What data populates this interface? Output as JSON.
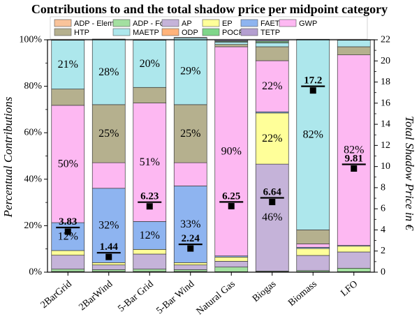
{
  "chart_data": {
    "type": "bar",
    "stacked": true,
    "title": "Contributions to and the total shadow price per midpoint category",
    "ylabel": "Percentual Contributions",
    "y2label": "Total Shadow Price in €",
    "ylim": [
      0,
      100
    ],
    "y2lim": [
      0,
      22
    ],
    "yticks": [
      "0%",
      "20%",
      "40%",
      "60%",
      "80%",
      "100%"
    ],
    "y2ticks": [
      "0",
      "2",
      "4",
      "6",
      "8",
      "10",
      "12",
      "14",
      "16",
      "18",
      "20",
      "22"
    ],
    "grid": false,
    "legend_position": "top",
    "categories": [
      "2BarGrid",
      "2BarWind",
      "5-Bar Grid",
      "5-Bar Wind",
      "Natural Gas",
      "Biogas",
      "Biomass",
      "LFO"
    ],
    "series": [
      {
        "name": "ADP - Elements",
        "color": "#f9c39a",
        "values": [
          0.3,
          0.3,
          0.3,
          0.3,
          0.2,
          0.2,
          0.2,
          0.2
        ]
      },
      {
        "name": "ADP - Fossil",
        "color": "#a3e0a0",
        "values": [
          1.0,
          0.8,
          1.0,
          0.8,
          2.0,
          0.3,
          0.5,
          1.5
        ]
      },
      {
        "name": "AP",
        "color": "#c5b3d9",
        "values": [
          6.0,
          2.0,
          6.5,
          2.0,
          2.5,
          46.0,
          6.5,
          7.0
        ]
      },
      {
        "name": "EP",
        "color": "#ffff99",
        "values": [
          2.0,
          1.0,
          2.0,
          1.0,
          1.8,
          22.0,
          3.0,
          2.5
        ]
      },
      {
        "name": "FAETP",
        "color": "#8eb4f0",
        "values": [
          12.0,
          32.0,
          12.0,
          33.0,
          0.5,
          0.5,
          0.5,
          0.3
        ]
      },
      {
        "name": "GWP",
        "color": "#fdb8f2",
        "values": [
          50.5,
          11.0,
          51.0,
          10.0,
          90.0,
          22.0,
          1.5,
          82.0
        ]
      },
      {
        "name": "HTP",
        "color": "#b5b08e",
        "values": [
          7.0,
          25.0,
          6.7,
          25.0,
          1.0,
          6.0,
          6.0,
          3.5
        ]
      },
      {
        "name": "MAETP",
        "color": "#ade7ec",
        "values": [
          21.0,
          28.0,
          20.3,
          28.7,
          1.0,
          1.7,
          82.0,
          2.8
        ]
      },
      {
        "name": "ODP",
        "color": "#ffb37a",
        "values": [
          0.1,
          0.1,
          0.1,
          0.1,
          0.2,
          0.1,
          0.0,
          0.1
        ]
      },
      {
        "name": "POCP",
        "color": "#7fd68a",
        "values": [
          0.1,
          0.1,
          0.1,
          0.1,
          0.3,
          0.6,
          0.0,
          0.1
        ]
      },
      {
        "name": "TETP",
        "color": "#b49fd0",
        "values": [
          0.0,
          0.0,
          0.0,
          0.0,
          0.5,
          0.6,
          0.0,
          0.0
        ]
      }
    ],
    "segment_labels": [
      {
        "category": "2BarGrid",
        "series": "FAETP",
        "text": "12%"
      },
      {
        "category": "2BarGrid",
        "series": "GWP",
        "text": "50%"
      },
      {
        "category": "2BarGrid",
        "series": "MAETP",
        "text": "21%"
      },
      {
        "category": "2BarWind",
        "series": "FAETP",
        "text": "32%"
      },
      {
        "category": "2BarWind",
        "series": "HTP",
        "text": "25%"
      },
      {
        "category": "2BarWind",
        "series": "MAETP",
        "text": "28%"
      },
      {
        "category": "5-Bar Grid",
        "series": "FAETP",
        "text": "12%"
      },
      {
        "category": "5-Bar Grid",
        "series": "GWP",
        "text": "51%"
      },
      {
        "category": "5-Bar Grid",
        "series": "MAETP",
        "text": "20%"
      },
      {
        "category": "5-Bar Wind",
        "series": "FAETP",
        "text": "33%"
      },
      {
        "category": "5-Bar Wind",
        "series": "HTP",
        "text": "25%"
      },
      {
        "category": "5-Bar Wind",
        "series": "MAETP",
        "text": "29%"
      },
      {
        "category": "Natural Gas",
        "series": "GWP",
        "text": "90%"
      },
      {
        "category": "Biogas",
        "series": "AP",
        "text": "46%"
      },
      {
        "category": "Biogas",
        "series": "EP",
        "text": "22%"
      },
      {
        "category": "Biogas",
        "series": "GWP",
        "text": "22%"
      },
      {
        "category": "Biomass",
        "series": "MAETP",
        "text": "82%"
      },
      {
        "category": "LFO",
        "series": "GWP",
        "text": "82%"
      }
    ],
    "shadow_price": {
      "values": [
        3.83,
        1.44,
        6.23,
        2.24,
        6.25,
        6.64,
        17.2,
        9.81
      ],
      "labels": [
        "3.83",
        "1.44",
        "6.23",
        "2.24",
        "6.25",
        "6.64",
        "17.2",
        "9.81"
      ]
    }
  }
}
